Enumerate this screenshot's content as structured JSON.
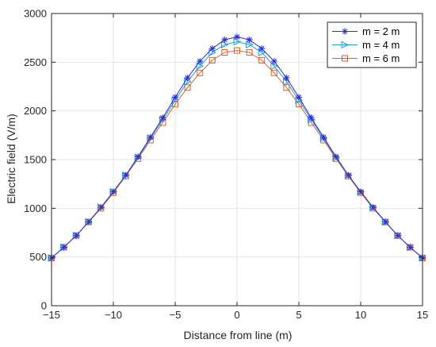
{
  "chart_data": {
    "type": "line",
    "xlabel": "Distance from line (m)",
    "ylabel": "Electric field (V/m)",
    "xlim": [
      -15,
      15
    ],
    "ylim": [
      0,
      3000
    ],
    "xticks": [
      -15,
      -10,
      -5,
      0,
      5,
      10,
      15
    ],
    "yticks": [
      0,
      500,
      1000,
      1500,
      2000,
      2500,
      3000
    ],
    "grid": true,
    "legend_position": "top-right",
    "x": [
      -15,
      -14,
      -13,
      -12,
      -11,
      -10,
      -9,
      -8,
      -7,
      -6,
      -5,
      -4,
      -3,
      -2,
      -1,
      0,
      1,
      2,
      3,
      4,
      5,
      6,
      7,
      8,
      9,
      10,
      11,
      12,
      13,
      14,
      15
    ],
    "series": [
      {
        "name": "m = 2 m",
        "color": "#2f2fd0",
        "marker": "asterisk",
        "values": [
          490,
          600,
          720,
          860,
          1010,
          1170,
          1340,
          1530,
          1730,
          1930,
          2140,
          2340,
          2510,
          2640,
          2730,
          2760,
          2730,
          2640,
          2510,
          2340,
          2140,
          1930,
          1730,
          1530,
          1340,
          1170,
          1010,
          860,
          720,
          600,
          490
        ]
      },
      {
        "name": "m = 4 m",
        "color": "#1f9fd6",
        "marker": "triangle-right",
        "values": [
          490,
          600,
          720,
          860,
          1010,
          1170,
          1340,
          1520,
          1720,
          1910,
          2110,
          2300,
          2460,
          2600,
          2680,
          2710,
          2680,
          2600,
          2460,
          2300,
          2110,
          1910,
          1720,
          1520,
          1340,
          1170,
          1010,
          860,
          720,
          600,
          490
        ]
      },
      {
        "name": "m = 6 m",
        "color": "#d6602a",
        "marker": "square",
        "values": [
          490,
          600,
          720,
          860,
          1000,
          1160,
          1330,
          1510,
          1700,
          1880,
          2070,
          2240,
          2390,
          2520,
          2600,
          2620,
          2600,
          2520,
          2390,
          2240,
          2070,
          1880,
          1700,
          1510,
          1330,
          1160,
          1000,
          860,
          720,
          600,
          490
        ]
      }
    ]
  }
}
